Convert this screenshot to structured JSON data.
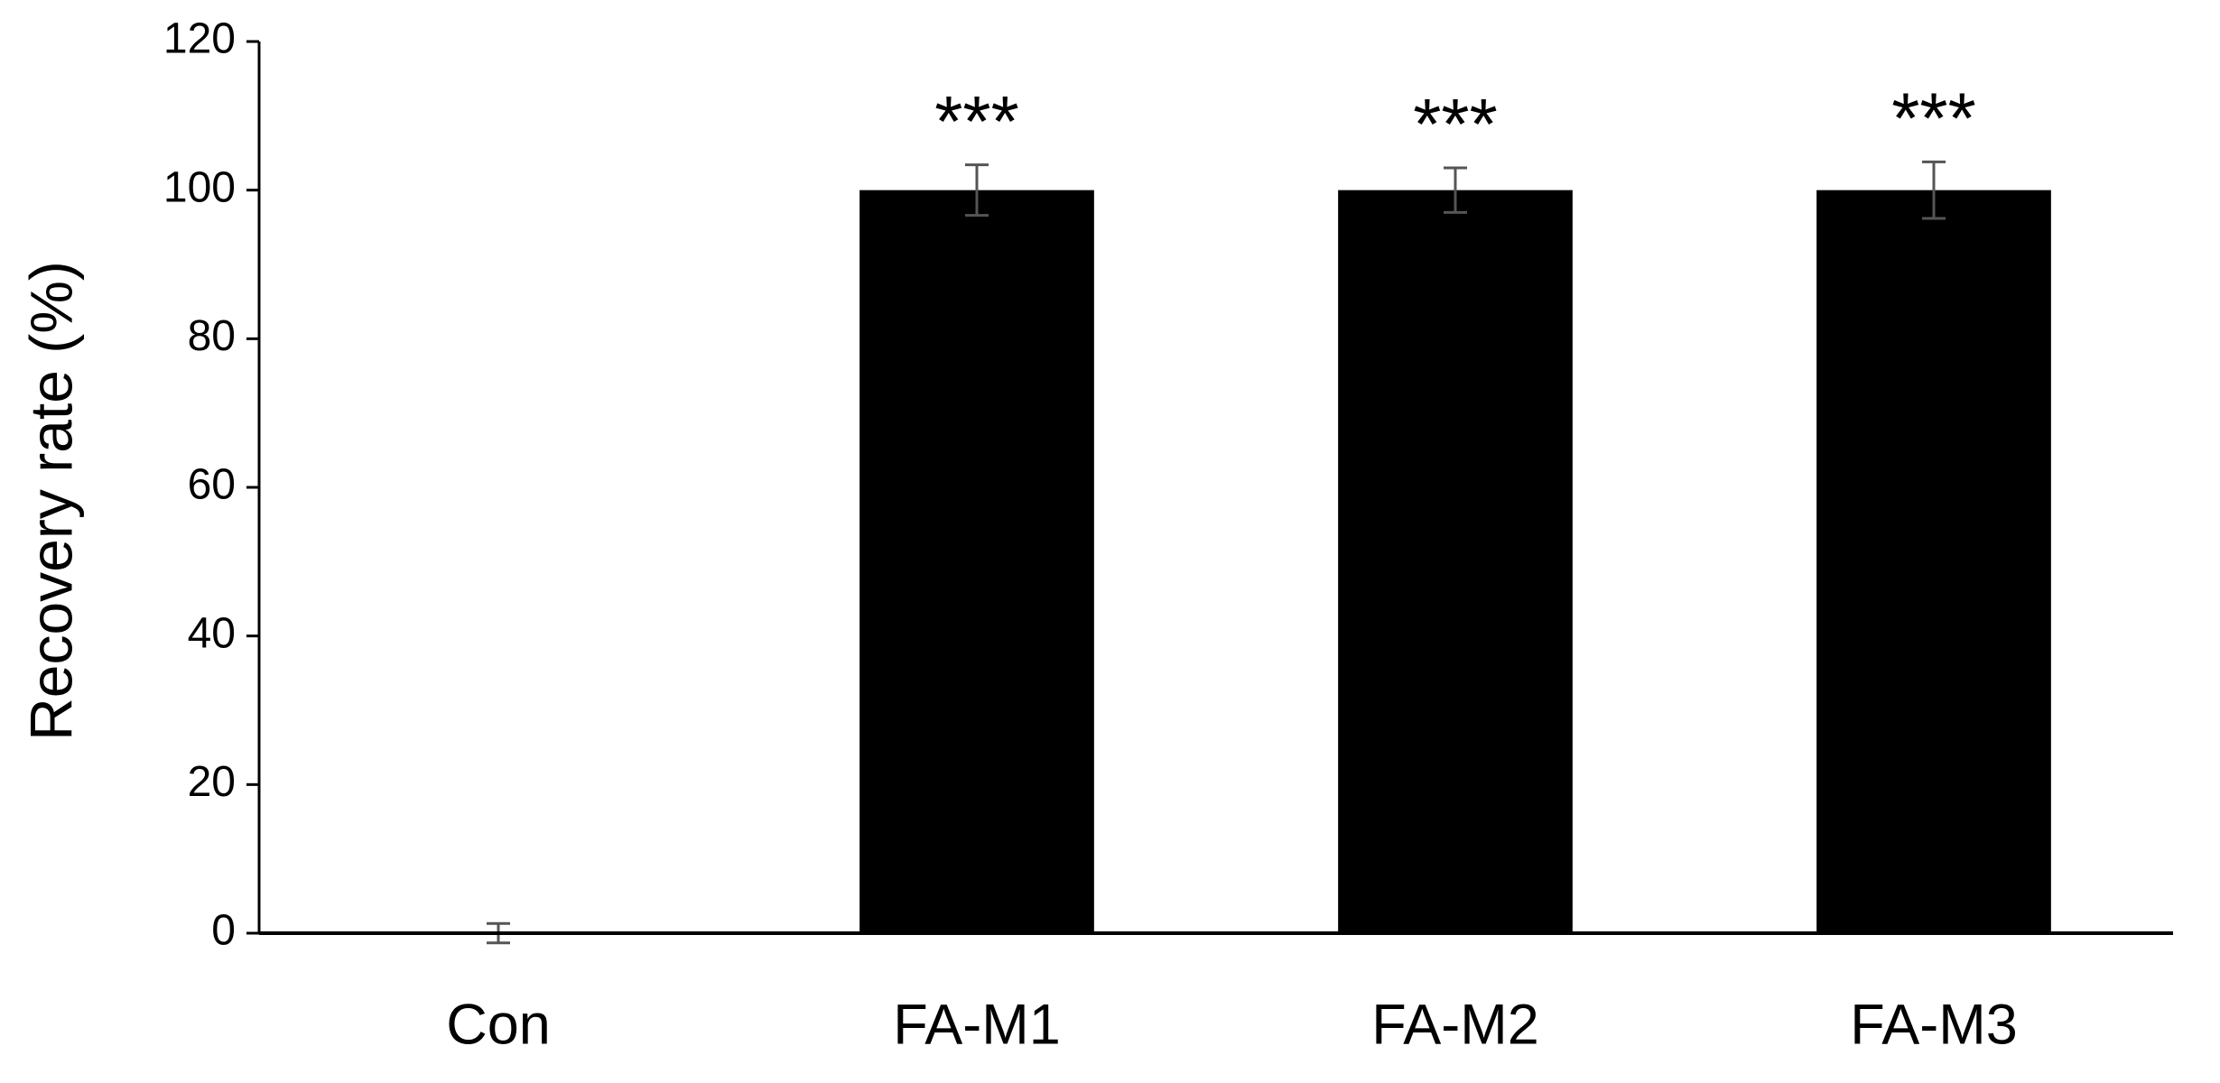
{
  "chart_data": {
    "type": "bar",
    "y_label": "Recovery rate (%)",
    "categories": [
      "Con",
      "FA-M1",
      "FA-M2",
      "FA-M3"
    ],
    "values": [
      0,
      100,
      100,
      100
    ],
    "errors": [
      1.3,
      3.4,
      3.0,
      3.8
    ],
    "annotations": [
      null,
      "***",
      "***",
      "***"
    ],
    "color": "#000000",
    "ylim": [
      0,
      120
    ],
    "yticks": [
      0,
      20,
      40,
      60,
      80,
      100,
      120
    ],
    "grid": false
  }
}
